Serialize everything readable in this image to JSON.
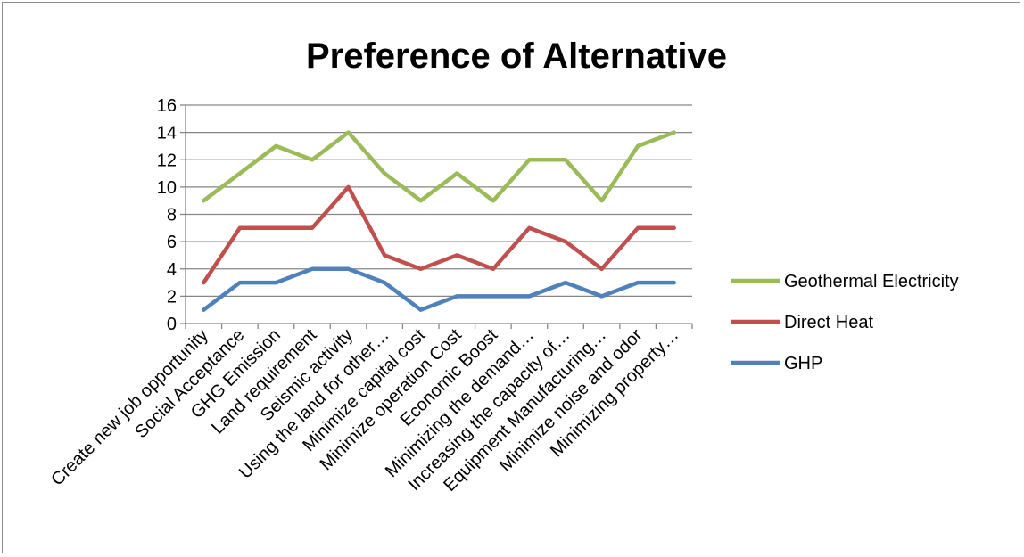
{
  "chart_data": {
    "type": "line",
    "title": "Preference of Alternative",
    "xlabel": "",
    "ylabel": "",
    "ylim": [
      0,
      16
    ],
    "yticks": [
      "0",
      "2",
      "4",
      "6",
      "8",
      "10",
      "12",
      "14",
      "16"
    ],
    "grid": true,
    "legend_position": "right",
    "categories": [
      "Create new job opportunity",
      "Social Acceptance",
      "GHG Emission",
      "Land requirement",
      "Seismic activity",
      "Using the land for other…",
      "Minimize capital cost",
      "Minimize operation Cost",
      "Economic Boost",
      "Minimizing the  demand…",
      "Increasing the capacity of…",
      "Equipment Manufacturing…",
      "Minimize noise and odor",
      "Minimizing property…"
    ],
    "series": [
      {
        "name": "Geothermal Electricity",
        "color": "#9bbb59",
        "values": [
          9,
          11,
          13,
          12,
          14,
          11,
          9,
          11,
          9,
          12,
          12,
          9,
          13,
          14
        ]
      },
      {
        "name": "Direct Heat",
        "color": "#c0504d",
        "values": [
          3,
          7,
          7,
          7,
          10,
          5,
          4,
          5,
          4,
          7,
          6,
          4,
          7,
          7
        ]
      },
      {
        "name": "GHP",
        "color": "#4f81bd",
        "values": [
          1,
          3,
          3,
          4,
          4,
          3,
          1,
          2,
          2,
          2,
          3,
          2,
          3,
          3
        ]
      }
    ]
  }
}
